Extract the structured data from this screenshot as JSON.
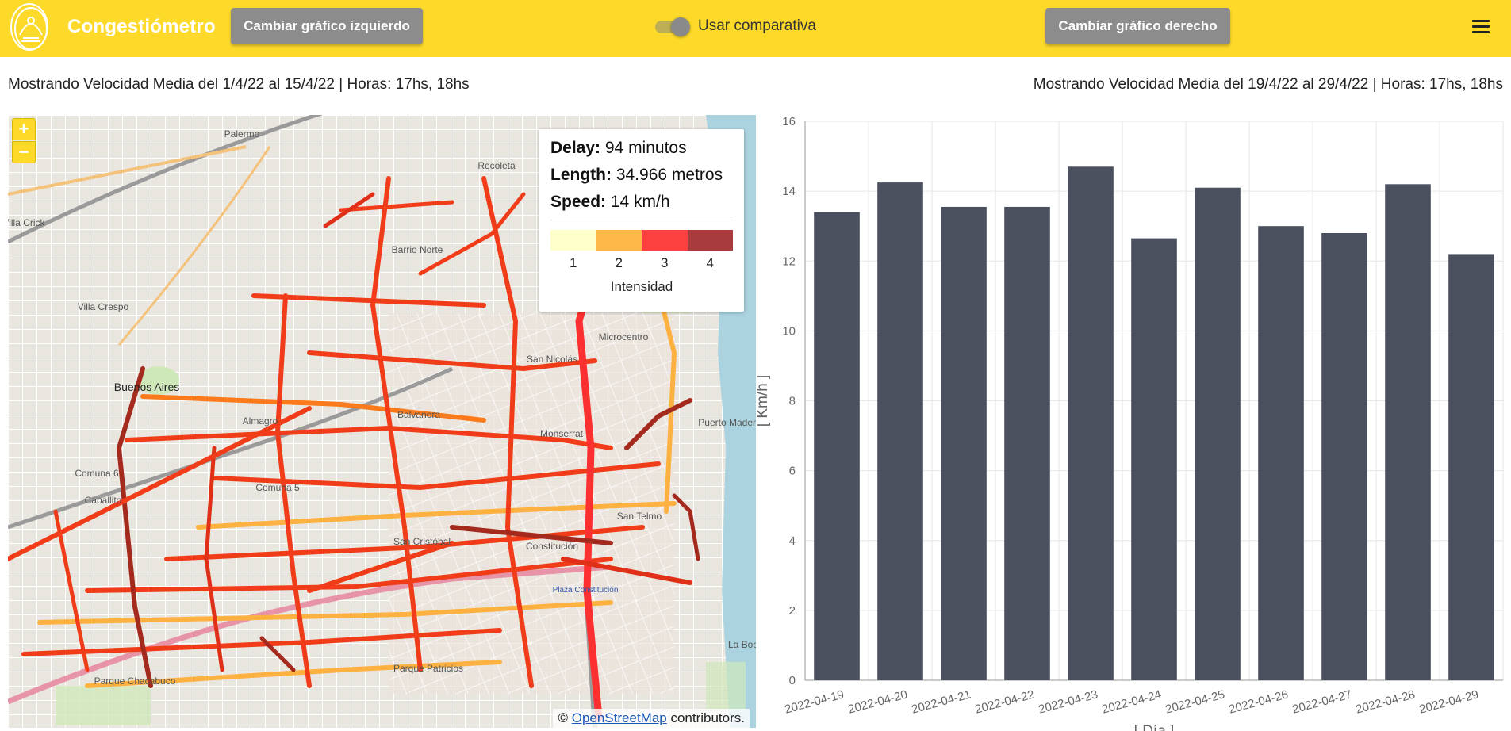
{
  "header": {
    "title": "Congestiómetro",
    "left_button": "Cambiar gráfico izquierdo",
    "toggle_label": "Usar comparativa",
    "toggle_on": true,
    "right_button": "Cambiar gráfico derecho"
  },
  "captions": {
    "left": "Mostrando Velocidad Media del 1/4/22 al 15/4/22 | Horas: 17hs, 18hs",
    "right": "Mostrando Velocidad Media del 19/4/22 al 29/4/22 | Horas: 17hs, 18hs"
  },
  "map": {
    "zoom_in": "+",
    "zoom_out": "−",
    "info": {
      "delay_label": "Delay:",
      "delay_value": "94 minutos",
      "length_label": "Length:",
      "length_value": "34.966 metros",
      "speed_label": "Speed:",
      "speed_value": "14 km/h"
    },
    "legend": {
      "colors": [
        "#ffffcc",
        "#fdb847",
        "#fc3f3f",
        "#a83b3b"
      ],
      "labels": [
        "1",
        "2",
        "3",
        "4"
      ],
      "title": "Intensidad"
    },
    "places": [
      "Palermo",
      "Villa Crespo",
      "Buenos Aires",
      "Almagro",
      "Balvanera",
      "Recoleta",
      "Barrio Norte",
      "Microcentro",
      "San Nicolás",
      "Monserrat",
      "Puerto Madero",
      "San Telmo",
      "Constitución",
      "Plaza Constitución",
      "San Cristóbal",
      "Comuna 5",
      "Comuna 6",
      "Caballito",
      "Parque Chacabuco",
      "Parque Patricios",
      "La Boca",
      "Villa Crick"
    ],
    "attribution_prefix": "© ",
    "attribution_link": "OpenStreetMap",
    "attribution_suffix": " contributors."
  },
  "chart_data": {
    "type": "bar",
    "categories": [
      "2022-04-19",
      "2022-04-20",
      "2022-04-21",
      "2022-04-22",
      "2022-04-23",
      "2022-04-24",
      "2022-04-25",
      "2022-04-26",
      "2022-04-27",
      "2022-04-28",
      "2022-04-29"
    ],
    "values": [
      13.4,
      14.25,
      13.55,
      13.55,
      14.7,
      12.65,
      14.1,
      13.0,
      12.8,
      14.2,
      12.2
    ],
    "xlabel": "[ Día ]",
    "ylabel": "[ Km/h ]",
    "ylim": [
      0,
      16
    ],
    "yticks": [
      0,
      2,
      4,
      6,
      8,
      10,
      12,
      14,
      16
    ],
    "bar_color": "#4b505e",
    "grid": true
  },
  "colors": {
    "header": "#fdd92a",
    "button": "#8c8c8c"
  }
}
